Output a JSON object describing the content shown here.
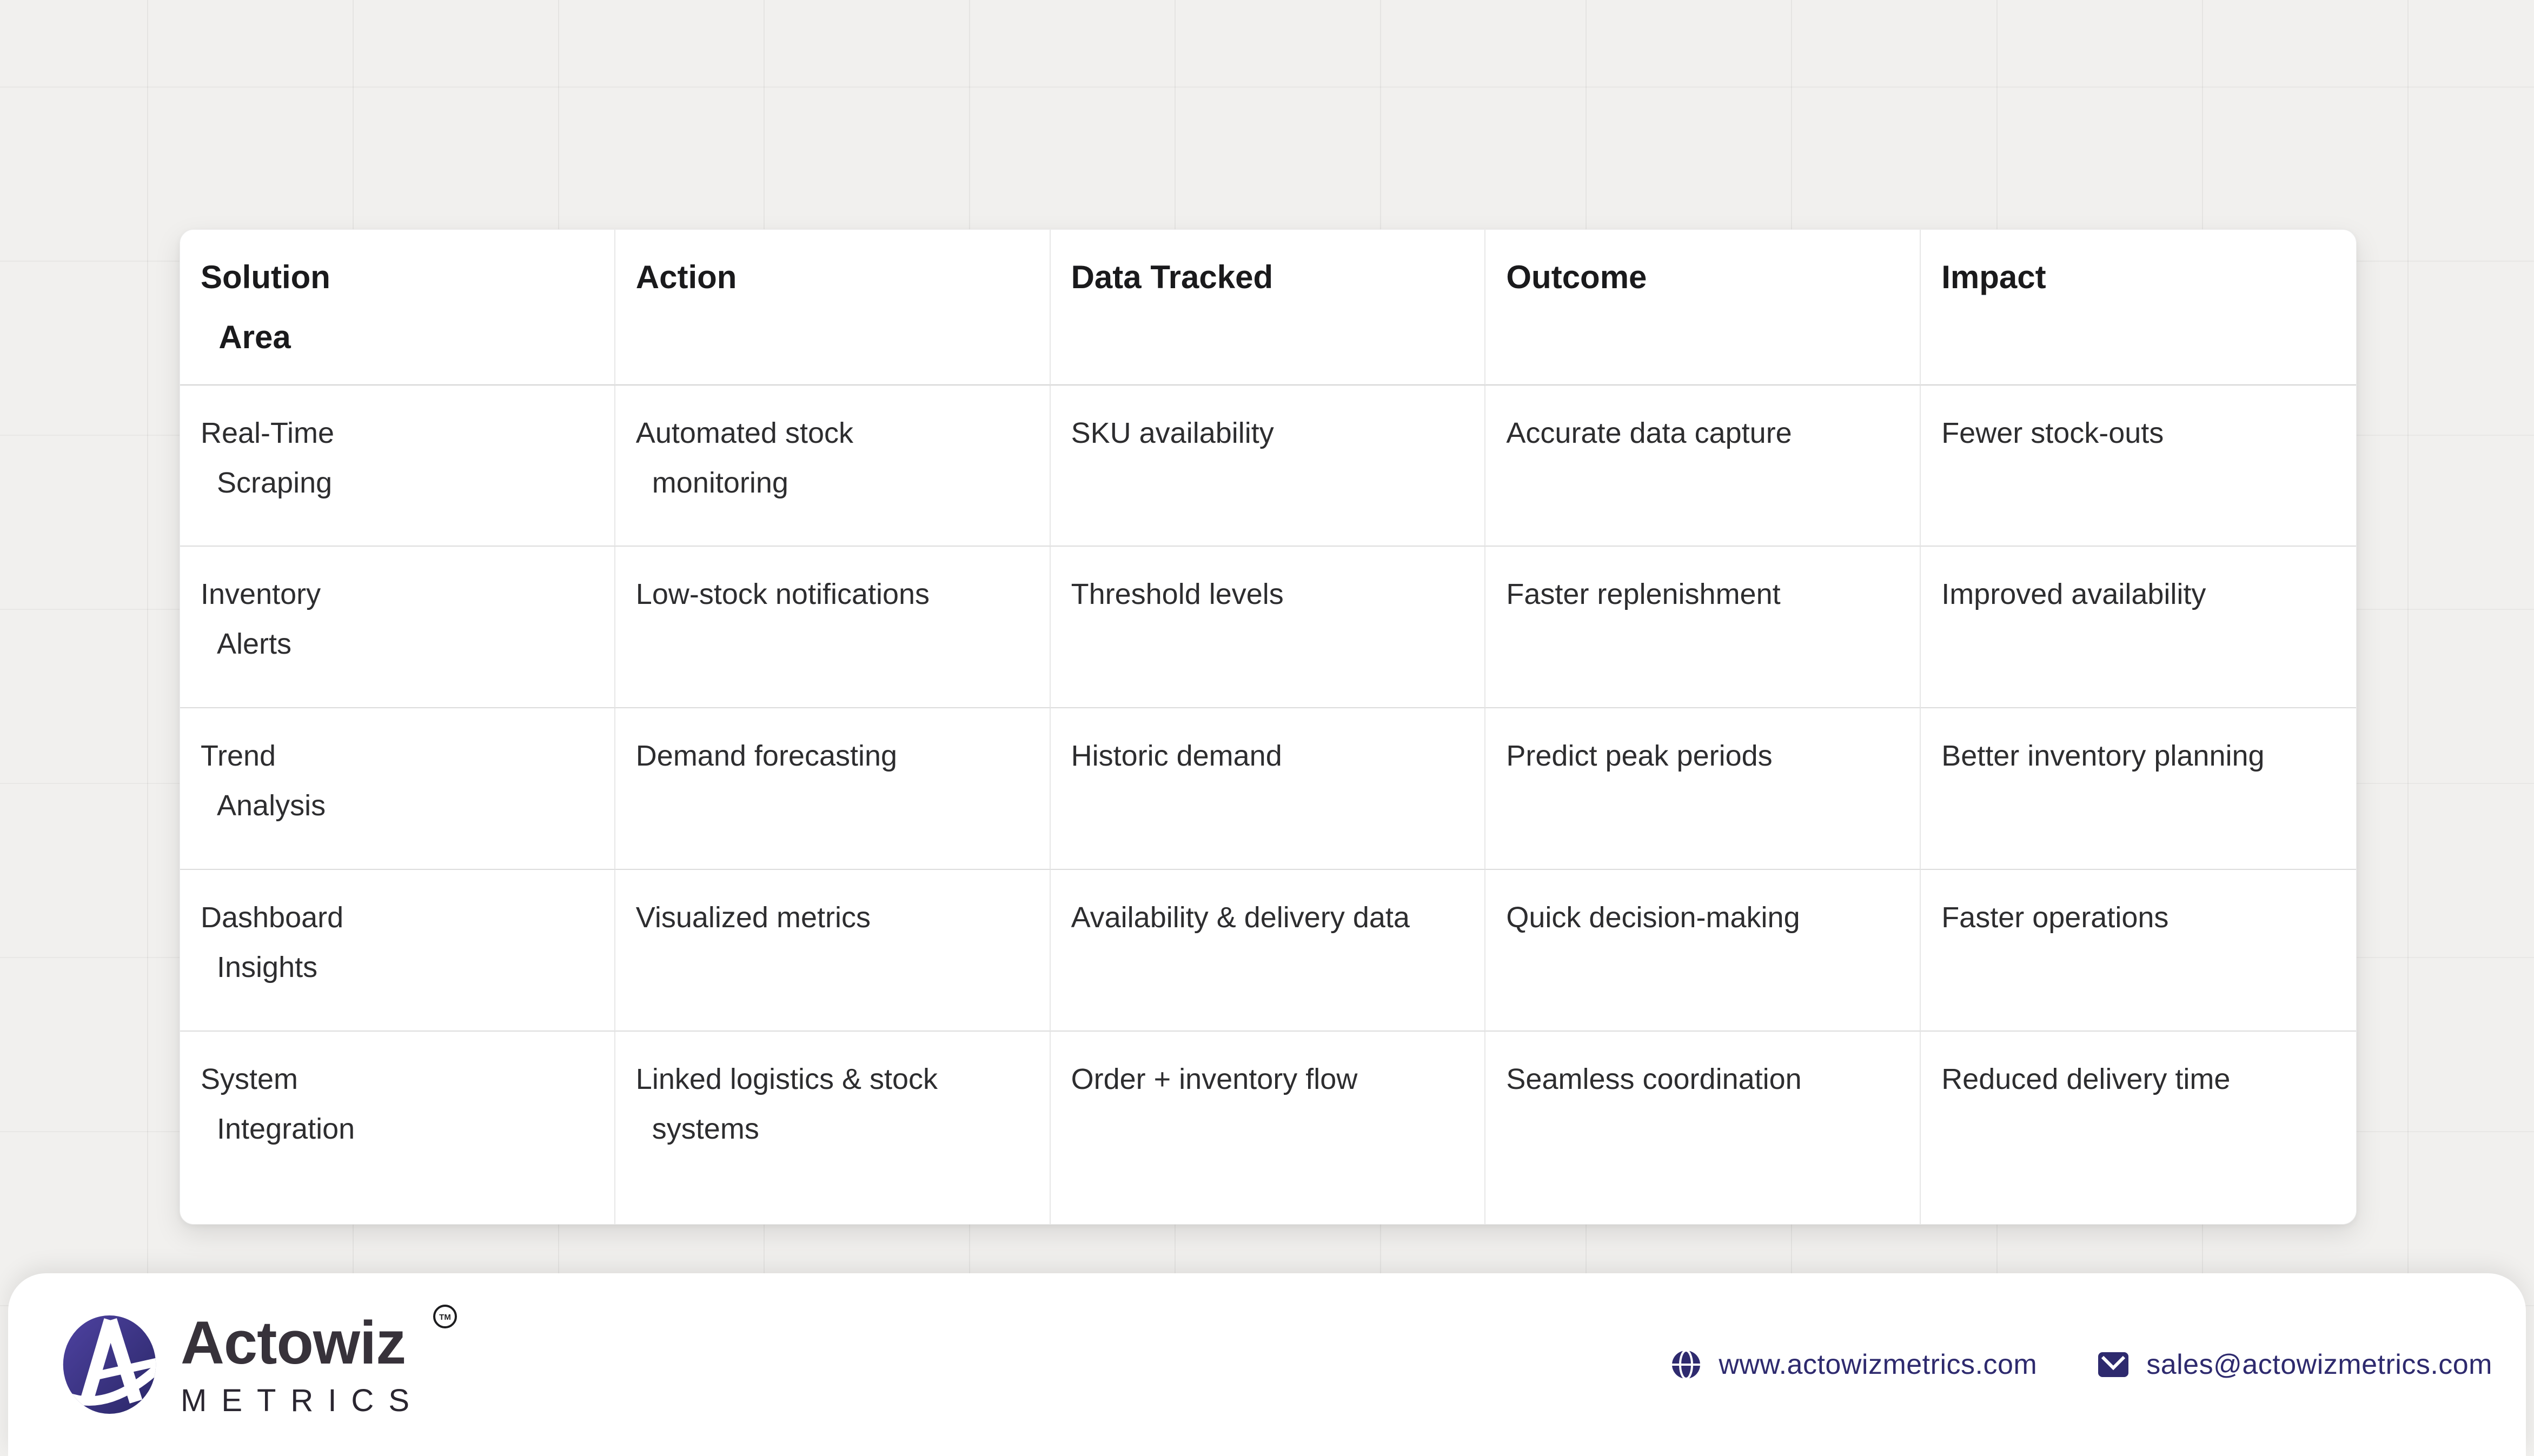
{
  "table": {
    "headers": [
      {
        "id": "solution-area",
        "lines": [
          "Solution",
          "Area"
        ]
      },
      {
        "id": "action",
        "lines": [
          "Action"
        ]
      },
      {
        "id": "data-tracked",
        "lines": [
          "Data Tracked"
        ]
      },
      {
        "id": "outcome",
        "lines": [
          "Outcome"
        ]
      },
      {
        "id": "impact",
        "lines": [
          "Impact"
        ]
      }
    ],
    "rows": [
      [
        {
          "lines": [
            "Real-Time",
            "Scraping"
          ]
        },
        {
          "lines": [
            "Automated stock",
            "monitoring"
          ]
        },
        {
          "lines": [
            "SKU availability"
          ]
        },
        {
          "lines": [
            "Accurate data capture"
          ]
        },
        {
          "lines": [
            "Fewer stock-outs"
          ]
        }
      ],
      [
        {
          "lines": [
            "Inventory",
            "Alerts"
          ]
        },
        {
          "lines": [
            "Low-stock notifications"
          ]
        },
        {
          "lines": [
            "Threshold levels"
          ]
        },
        {
          "lines": [
            "Faster replenishment"
          ]
        },
        {
          "lines": [
            "Improved availability"
          ]
        }
      ],
      [
        {
          "lines": [
            "Trend",
            "Analysis"
          ]
        },
        {
          "lines": [
            "Demand forecasting"
          ]
        },
        {
          "lines": [
            "Historic demand"
          ]
        },
        {
          "lines": [
            "Predict peak periods"
          ]
        },
        {
          "lines": [
            "Better inventory planning"
          ]
        }
      ],
      [
        {
          "lines": [
            "Dashboard",
            "Insights"
          ]
        },
        {
          "lines": [
            "Visualized metrics"
          ]
        },
        {
          "lines": [
            "Availability & delivery data"
          ]
        },
        {
          "lines": [
            "Quick decision-making"
          ]
        },
        {
          "lines": [
            "Faster operations"
          ]
        }
      ],
      [
        {
          "lines": [
            "System",
            "Integration"
          ]
        },
        {
          "lines": [
            "Linked logistics & stock",
            "systems"
          ]
        },
        {
          "lines": [
            "Order + inventory flow"
          ]
        },
        {
          "lines": [
            "Seamless coordination"
          ]
        },
        {
          "lines": [
            "Reduced delivery time"
          ]
        }
      ]
    ]
  },
  "footer": {
    "brand": {
      "name": "Actowiz",
      "tagline": "METRICS",
      "trademark": "TM"
    },
    "website": "www.actowizmetrics.com",
    "email": "sales@actowizmetrics.com"
  },
  "icons": {
    "logo": "actowiz-a-logo",
    "website": "globe-icon",
    "email": "mail-icon"
  },
  "colors": {
    "logo_purple_light": "#4e42a1",
    "logo_purple_dark": "#2a2767",
    "footer_text_indigo": "#2e2a6e",
    "header_text": "#1a1a1c",
    "body_text": "#2d2d2f",
    "background": "#f1f0ee"
  }
}
